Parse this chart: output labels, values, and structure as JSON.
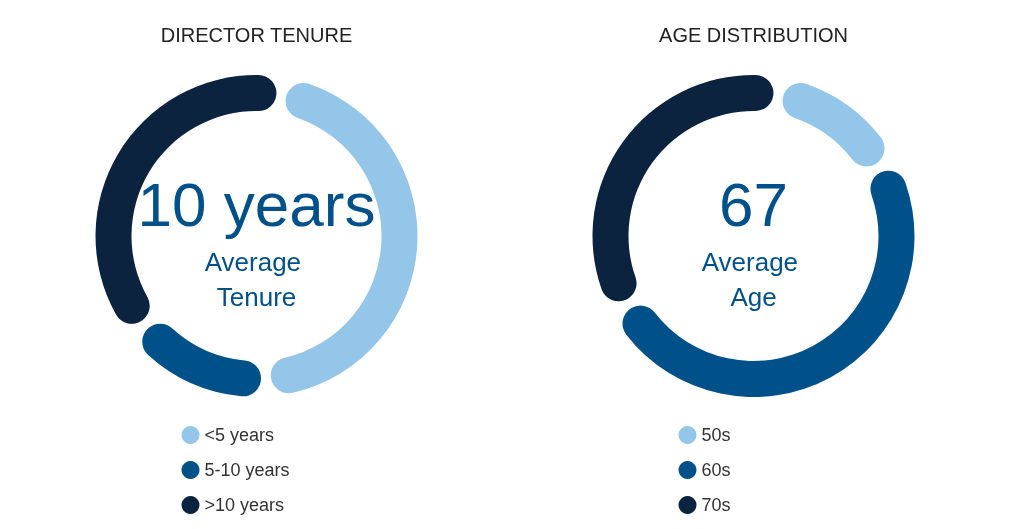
{
  "chart_data": [
    {
      "type": "donut",
      "title": "DIRECTOR TENURE",
      "categories": [
        "<5 years",
        "5-10 years",
        ">10 years"
      ],
      "values": [
        46.16,
        15.38,
        38.46
      ],
      "colors": [
        "#93c6e8",
        "#00508a",
        "#0c2340"
      ],
      "annotations": [
        "10 years",
        "Average Tenure"
      ],
      "legend": "bottom"
    },
    {
      "type": "donut",
      "title": "AGE DISTRIBUTION",
      "categories": [
        "50s",
        "60s",
        "70s"
      ],
      "values": [
        14.29,
        50,
        35.71
      ],
      "colors": [
        "#93c6e8",
        "#00508a",
        "#0c2340"
      ],
      "annotations": [
        "67",
        "Average Age"
      ],
      "legend": "bottom"
    }
  ]
}
